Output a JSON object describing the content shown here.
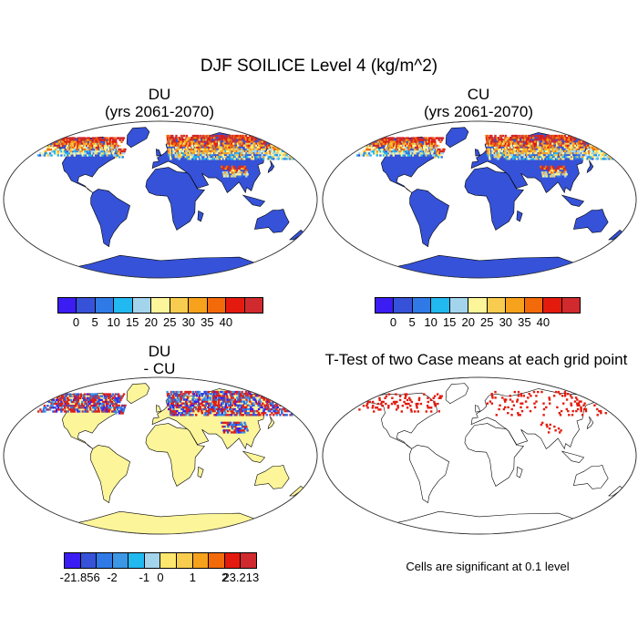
{
  "title": "DJF SOILICE Level 4 (kg/m^2)",
  "panels": {
    "du": {
      "title_line1": "DU",
      "title_line2": "(yrs 2061-2070)"
    },
    "cu": {
      "title_line1": "CU",
      "title_line2": "(yrs 2061-2070)"
    },
    "diff": {
      "title_line1": "DU",
      "title_line2": "- CU"
    },
    "ttest": {
      "title": "T-Test of two Case means at each grid point",
      "note": "Cells are significant at 0.1 level"
    }
  },
  "colorbars": {
    "abs": {
      "colors": [
        "#3b1cf2",
        "#3552d8",
        "#2f7ae6",
        "#22b8f0",
        "#a4d4ec",
        "#fdf59a",
        "#f8cc4e",
        "#f7a21c",
        "#f36a0a",
        "#e41a0e",
        "#d02a2e"
      ],
      "labels": [
        "0",
        "5",
        "10",
        "15",
        "20",
        "25",
        "30",
        "35",
        "40"
      ]
    },
    "diff": {
      "colors": [
        "#3b1cf2",
        "#3552d8",
        "#2f7ae6",
        "#3c97e6",
        "#22b8f0",
        "#a4d4ec",
        "#fde66e",
        "#f8cc4e",
        "#f7a21c",
        "#f36a0a",
        "#e41a0e",
        "#d02a2e"
      ],
      "labels": [
        "-21.856",
        "-2",
        "-1",
        "0",
        "1",
        "2",
        "23.213"
      ]
    }
  },
  "colors": {
    "ocean": "#ffffff",
    "land_abs_base": "#3552d8",
    "land_diff_base": "#fdf59a",
    "significant": "#e41a0e"
  }
}
